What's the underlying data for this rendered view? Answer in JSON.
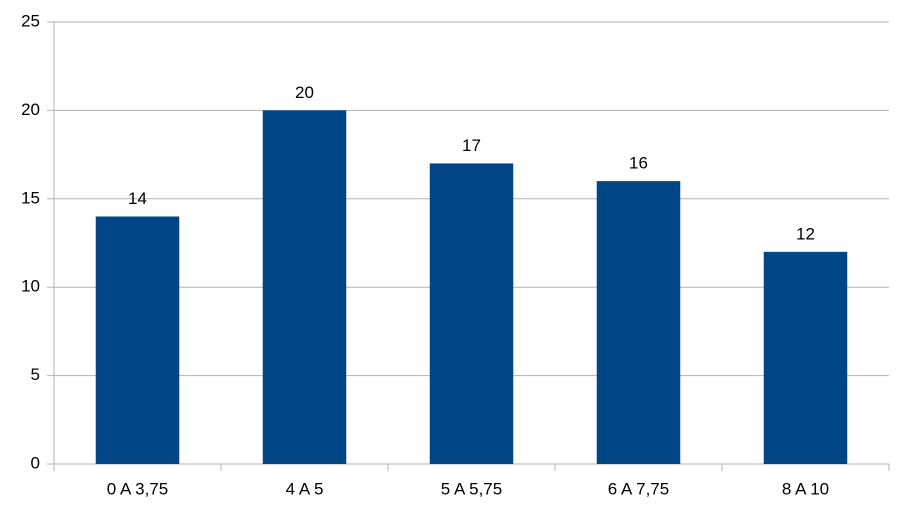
{
  "chart_data": {
    "type": "bar",
    "categories": [
      "0 A 3,75",
      "4 A 5",
      "5 A 5,75",
      "6 A 7,75",
      "8 A 10"
    ],
    "values": [
      14,
      20,
      17,
      16,
      12
    ],
    "color": "#004586",
    "ylim": [
      0,
      25
    ],
    "yticks": [
      0,
      5,
      10,
      15,
      20,
      25
    ],
    "grid": true
  }
}
